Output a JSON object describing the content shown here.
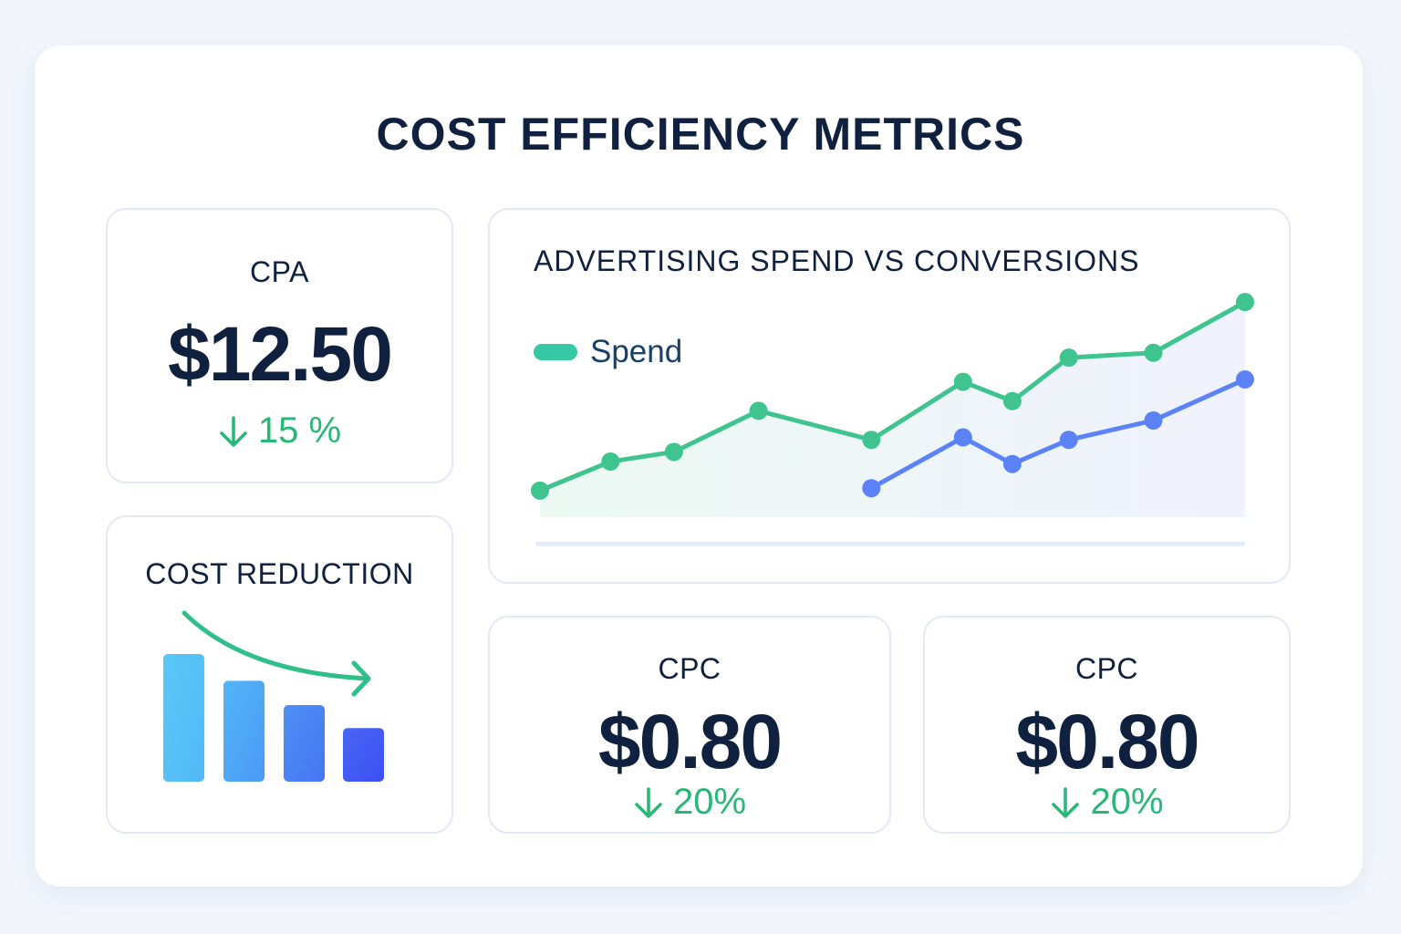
{
  "title": "COST EFFICIENCY METRICS",
  "cpa": {
    "label": "CPA",
    "value": "$12.50",
    "change": "15 %",
    "direction": "down"
  },
  "cost_reduction": {
    "label": "COST REDUCTION",
    "bar_levels": [
      100,
      79,
      60,
      42
    ]
  },
  "cpc_1": {
    "label": "CPC",
    "value": "$0.80",
    "change": "20%",
    "direction": "down"
  },
  "cpc_2": {
    "label": "CPC",
    "value": "$0.80",
    "change": "20%",
    "direction": "down"
  },
  "colors": {
    "positive": "#27b877",
    "spend": "#3fc48f",
    "conversions": "#5b83f7",
    "text": "#10203f"
  },
  "chart_data": {
    "type": "line",
    "title": "ADVERTISING SPEND VS CONVERSIONS",
    "legend_position": "top-left",
    "grid": false,
    "ylim": [
      0,
      100
    ],
    "series": [
      {
        "name": "Spend",
        "color": "#3fc48f",
        "x": [
          0,
          10,
          19,
          31,
          47,
          60,
          67,
          75,
          87,
          100
        ],
        "values": [
          11,
          23,
          27,
          44,
          32,
          56,
          48,
          66,
          68,
          89
        ]
      },
      {
        "color": "#5b83f7",
        "x": [
          47,
          60,
          67,
          75,
          87,
          100
        ],
        "values": [
          12,
          33,
          22,
          32,
          40,
          57
        ]
      }
    ]
  }
}
